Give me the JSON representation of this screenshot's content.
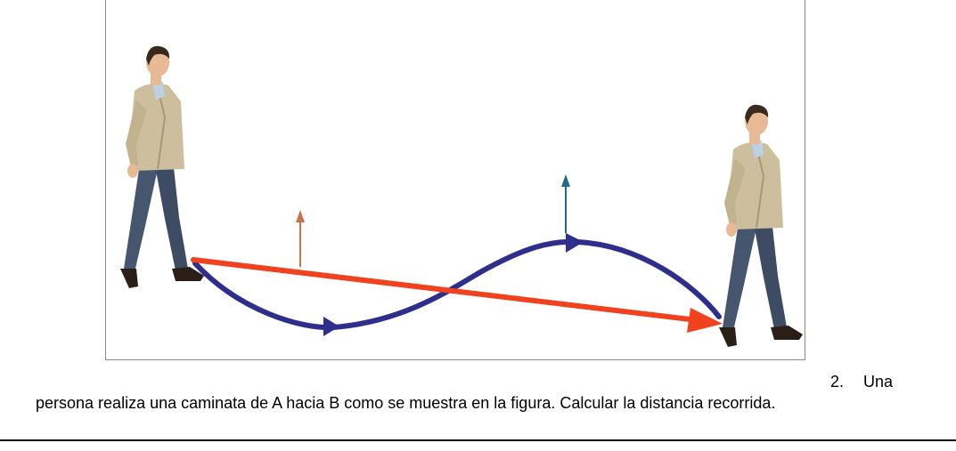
{
  "question": {
    "number": "2.",
    "lead": "Una",
    "text": "persona realiza una caminata de A hacia B como se muestra en la figura. Calcular la distancia recorrida."
  },
  "figure": {
    "colors": {
      "displacement_arrow": "#f0421e",
      "path_curve": "#2e2f8c",
      "small_arrow_left": "#c8734a",
      "small_arrow_right": "#1f6a8c",
      "jacket": "#cdbf9e",
      "pants": "#46566e",
      "skin": "#e7b995",
      "hair": "#3a2a1e",
      "shoes": "#2a1e17",
      "shirt": "#bcd0e6"
    },
    "icons": [
      "walking-man-icon",
      "walking-man-icon"
    ]
  }
}
